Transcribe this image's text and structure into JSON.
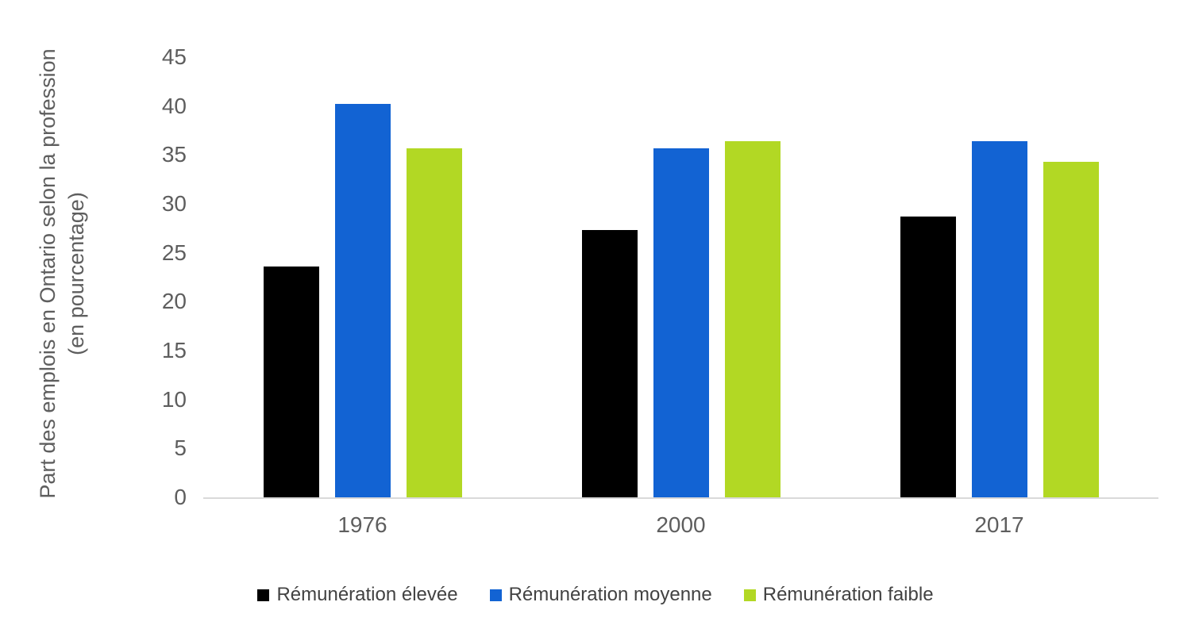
{
  "chart_data": {
    "type": "bar",
    "categories": [
      "1976",
      "2000",
      "2017"
    ],
    "series": [
      {
        "name": "Rémunération élevée",
        "color": "#000000",
        "values": [
          23.6,
          27.3,
          28.7
        ]
      },
      {
        "name": "Rémunération moyenne",
        "color": "#1263d3",
        "values": [
          40.2,
          35.7,
          36.4
        ]
      },
      {
        "name": "Rémunération faible",
        "color": "#b2d824",
        "values": [
          35.7,
          36.4,
          34.3
        ]
      }
    ],
    "title": "",
    "xlabel": "",
    "ylabel_line1": "Part des emplois en Ontario selon la profession",
    "ylabel_line2": "(en pourcentage)",
    "ylim": [
      0,
      45
    ],
    "yticks": [
      0,
      5,
      10,
      15,
      20,
      25,
      30,
      35,
      40,
      45
    ],
    "grid": false,
    "legend_position": "bottom",
    "colors": {
      "axis_line": "#d9d9d9",
      "axis_text": "#5e5e5e",
      "legend_text": "#424242",
      "background": "#ffffff"
    }
  }
}
